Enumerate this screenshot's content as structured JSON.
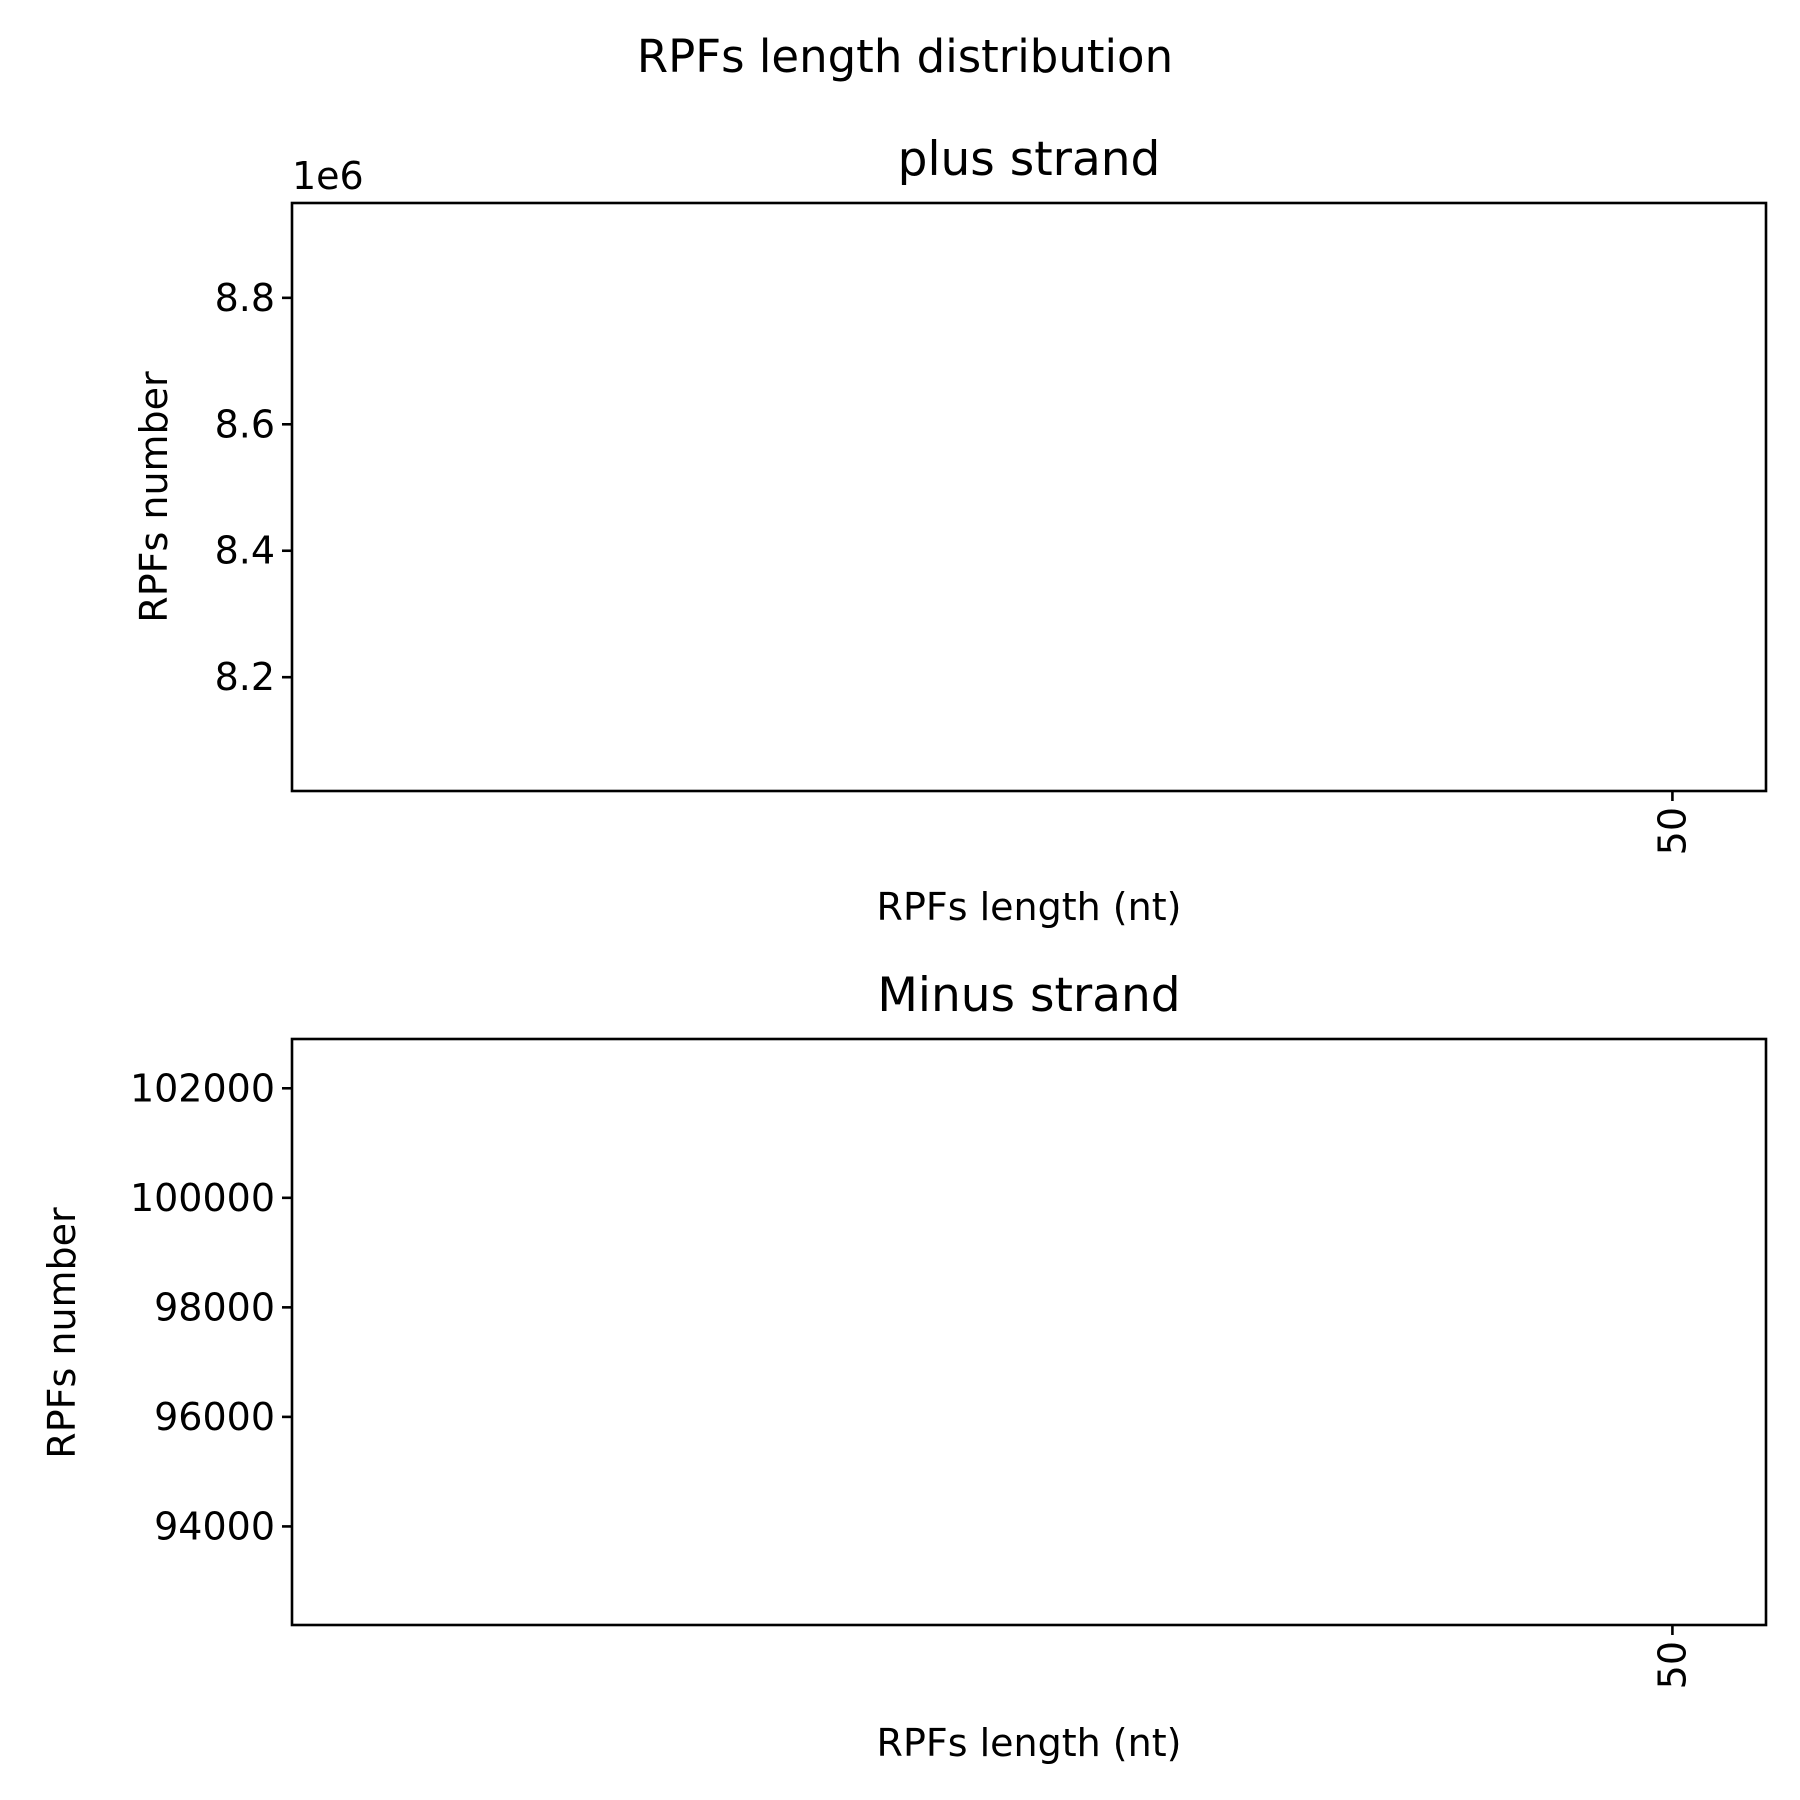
{
  "chart_data": {
    "type": "bar",
    "title": "RPFs length distribution",
    "panels": [
      {
        "title": "plus strand",
        "xlabel": "RPFs length (nt)",
        "ylabel": "RPFs number",
        "y_offset_label": "1e6",
        "xticks": [
          50
        ],
        "xtick_labels": [
          "50"
        ],
        "xtick_rotation": "vertical",
        "yticks": [
          8200000,
          8400000,
          8600000,
          8800000
        ],
        "ytick_labels": [
          "8.2",
          "8.4",
          "8.6",
          "8.8"
        ],
        "ylim": [
          8020000,
          8950000
        ],
        "categories": [],
        "values": []
      },
      {
        "title": "Minus strand",
        "xlabel": "RPFs length (nt)",
        "ylabel": "RPFs number",
        "y_offset_label": "",
        "xticks": [
          50
        ],
        "xtick_labels": [
          "50"
        ],
        "xtick_rotation": "vertical",
        "yticks": [
          94000,
          96000,
          98000,
          100000,
          102000
        ],
        "ytick_labels": [
          "94000",
          "96000",
          "98000",
          "100000",
          "102000"
        ],
        "ylim": [
          92200,
          102900
        ],
        "categories": [],
        "values": []
      }
    ],
    "grid": false,
    "legend": "none"
  }
}
